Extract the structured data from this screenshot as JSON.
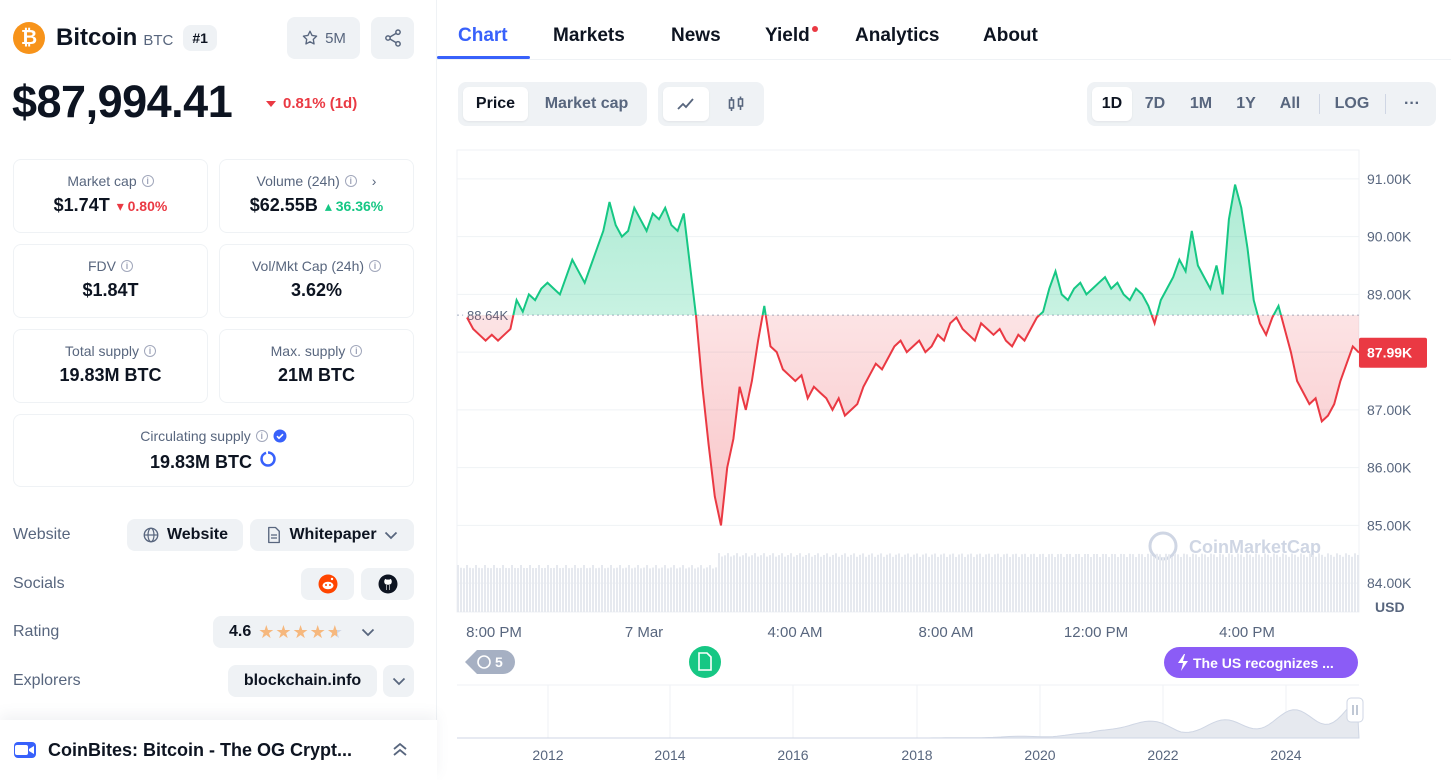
{
  "coin": {
    "name": "Bitcoin",
    "symbol": "BTC",
    "rank": "#1",
    "watchlist_count": "5M",
    "price": "$87,994.41",
    "price_change": "0.81% (1d)",
    "logo_glyph": "₿"
  },
  "stats": {
    "market_cap": {
      "label": "Market cap",
      "value": "$1.74T",
      "change": "0.80%"
    },
    "volume": {
      "label": "Volume (24h)",
      "value": "$62.55B",
      "change": "36.36%"
    },
    "fdv": {
      "label": "FDV",
      "value": "$1.84T"
    },
    "vol_mkt": {
      "label": "Vol/Mkt Cap (24h)",
      "value": "3.62%"
    },
    "total_supply": {
      "label": "Total supply",
      "value": "19.83M BTC"
    },
    "max_supply": {
      "label": "Max. supply",
      "value": "21M BTC"
    },
    "circulating": {
      "label": "Circulating supply",
      "value": "19.83M BTC"
    }
  },
  "links": {
    "website_label": "Website",
    "website_btn": "Website",
    "whitepaper_btn": "Whitepaper",
    "socials_label": "Socials",
    "rating_label": "Rating",
    "rating_value": "4.6",
    "explorers_label": "Explorers",
    "explorer_btn": "blockchain.info"
  },
  "coinbites": {
    "title": "CoinBites: Bitcoin - The OG Crypt..."
  },
  "tabs": [
    "Chart",
    "Markets",
    "News",
    "Yield",
    "Analytics",
    "About"
  ],
  "toolbar": {
    "type_options": [
      "Price",
      "Market cap"
    ],
    "ranges": [
      "1D",
      "7D",
      "1M",
      "1Y",
      "All",
      "LOG"
    ],
    "more": "···"
  },
  "chart_data": {
    "type": "area",
    "baseline": 88.64,
    "baseline_label": "88.64K",
    "current_label": "87.99K",
    "unit_label": "USD",
    "y_ticks": [
      "91.00K",
      "90.00K",
      "89.00K",
      "88.00K",
      "87.00K",
      "86.00K",
      "85.00K",
      "84.00K"
    ],
    "y_values": [
      91,
      90,
      89,
      88,
      87,
      86,
      85,
      84
    ],
    "x_ticks": [
      "8:00 PM",
      "7 Mar",
      "4:00 AM",
      "8:00 AM",
      "12:00 PM",
      "4:00 PM"
    ],
    "ylim": [
      83.5,
      91.5
    ],
    "series": [
      {
        "values": [
          88.6,
          88.4,
          88.3,
          88.2,
          88.3,
          88.2,
          88.3,
          88.4,
          88.9,
          88.7,
          89.0,
          88.9,
          89.1,
          89.2,
          89.1,
          89.0,
          89.3,
          89.6,
          89.4,
          89.2,
          89.5,
          89.8,
          90.1,
          90.6,
          90.2,
          90.0,
          90.1,
          90.5,
          90.3,
          90.1,
          90.4,
          90.3,
          90.5,
          90.2,
          90.1,
          90.4,
          89.5,
          88.6,
          87.4,
          86.4,
          85.5,
          85.0,
          86.0,
          86.5,
          87.4,
          87.0,
          87.5,
          88.2,
          88.8,
          88.1,
          88.0,
          87.7,
          87.6,
          87.5,
          87.6,
          87.2,
          87.4,
          87.3,
          87.2,
          87.0,
          87.2,
          86.9,
          87.0,
          87.1,
          87.4,
          87.6,
          87.8,
          87.7,
          87.9,
          88.1,
          88.2,
          88.0,
          88.1,
          88.2,
          88.0,
          88.1,
          88.3,
          88.2,
          88.5,
          88.6,
          88.4,
          88.3,
          88.2,
          88.5,
          88.4,
          88.3,
          88.4,
          88.2,
          88.1,
          88.3,
          88.2,
          88.4,
          88.6,
          88.7,
          89.1,
          89.4,
          89.0,
          88.9,
          89.1,
          89.2,
          89.0,
          89.1,
          89.2,
          89.3,
          89.1,
          89.2,
          89.0,
          88.9,
          89.1,
          89.0,
          88.8,
          88.5,
          88.9,
          89.1,
          89.3,
          89.6,
          89.4,
          90.1,
          89.5,
          89.3,
          89.1,
          89.5,
          89.0,
          90.3,
          90.9,
          90.5,
          89.8,
          88.9,
          88.5,
          88.3,
          88.6,
          88.8,
          88.4,
          88.0,
          87.5,
          87.3,
          87.1,
          87.2,
          86.8,
          86.9,
          87.1,
          87.5,
          87.8,
          88.1,
          87.99
        ]
      }
    ]
  },
  "navigator": {
    "years": [
      "2012",
      "2014",
      "2016",
      "2018",
      "2020",
      "2022",
      "2024"
    ],
    "watermark": "CoinMarketCap",
    "event_count": "5",
    "news_label": "The US recognizes ..."
  },
  "colors": {
    "up": "#16c784",
    "down": "#ea3943",
    "accent": "#3861fb",
    "news_purple": "#8b5cf6"
  }
}
